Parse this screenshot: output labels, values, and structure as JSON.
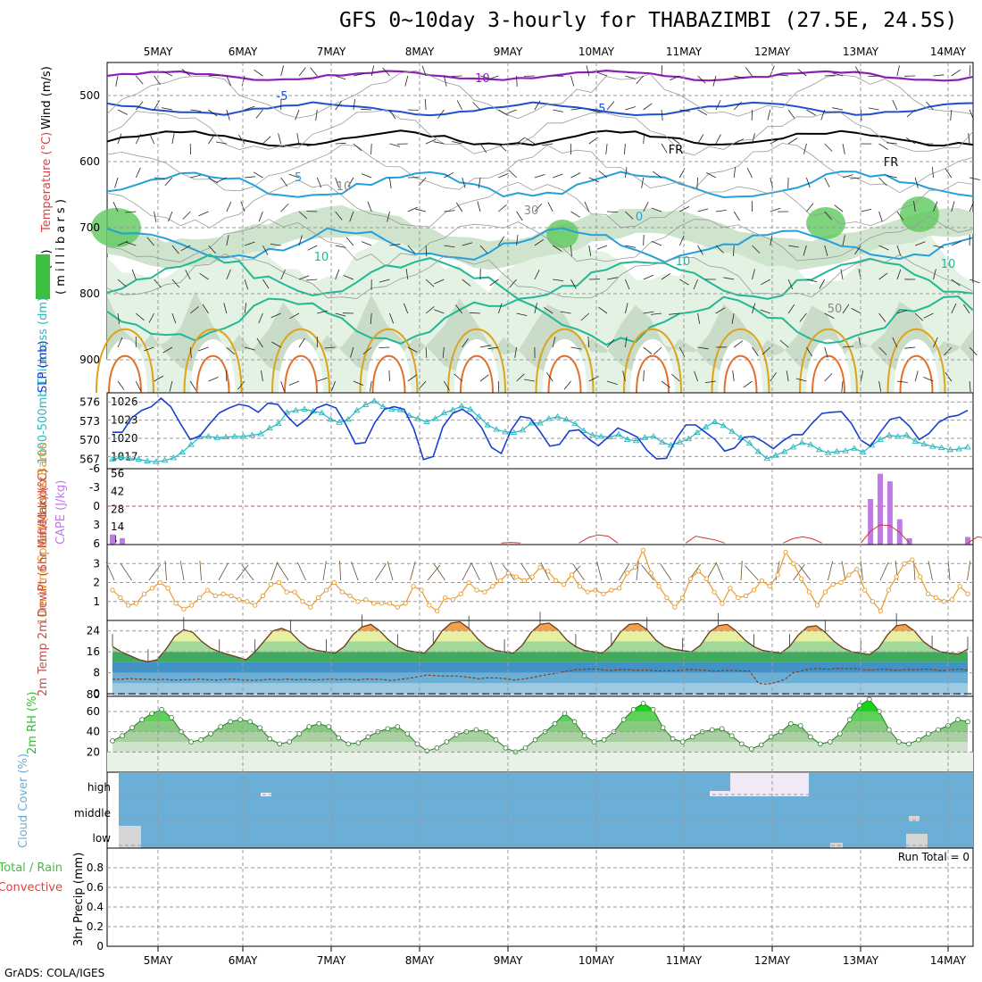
{
  "title": "GFS 0~10day 3-hourly for THABAZIMBI (27.5E, 24.5S)",
  "footer": "GrADS: COLA/IGES",
  "date_labels": [
    "5MAY",
    "6MAY",
    "7MAY",
    "8MAY",
    "9MAY",
    "10MAY",
    "11MAY",
    "12MAY",
    "13MAY",
    "14MAY"
  ],
  "colors": {
    "purple": "#8c1fb5",
    "blue": "#1f4fcf",
    "cyan": "#23a0dc",
    "teal": "#22b896",
    "orange": "#e0a21c",
    "slp": "#1a3fd0",
    "thick": "#2ab8c0",
    "wind10": "#e89a2a",
    "rh2m": "#2fbf2f",
    "cloud": "#6baed6"
  },
  "chart_data": [
    {
      "type": "heatmap",
      "panel": "upper-air cross-section",
      "ylabel_parts": [
        "RH (%)",
        "Temperature (°C)",
        "Wind (m/s)"
      ],
      "ylabel_right": "( m i l l i b a r s )",
      "ylim": [
        950,
        450
      ],
      "yticks": [
        500,
        600,
        700,
        800,
        900
      ],
      "isotherm_labels": [
        "-10",
        "-5",
        "-5",
        "FR",
        "FR",
        "5",
        "0",
        "10",
        "10",
        "10",
        "50",
        "30",
        "10"
      ],
      "rh_levels": [
        30,
        50,
        70,
        90
      ]
    },
    {
      "type": "line",
      "panel": "SLP and thickness",
      "ylabel_left": "1000-500mb Thickness (dm)",
      "ylabel_right": "SLP (mb)",
      "left_ticks": [
        567,
        570,
        573,
        576
      ],
      "right_ticks": [
        1017,
        1020,
        1023,
        1026
      ],
      "series": [
        {
          "name": "SLP (mb)",
          "values": [
            1021.0,
            1021.0,
            1023.4,
            1024.6,
            1025.2,
            1026.6,
            1025.2,
            1022.4,
            1019.8,
            1020.4,
            1022.4,
            1024.2,
            1025.0,
            1025.6,
            1025.3,
            1024.3,
            1025.8,
            1025.6,
            1023.6,
            1022.0,
            1023.2,
            1025.0,
            1025.6,
            1025.0,
            1022.3,
            1019.1,
            1019.3,
            1022.6,
            1024.8,
            1025.2,
            1024.8,
            1021.6,
            1016.5,
            1017.0,
            1021.9,
            1024.1,
            1024.8,
            1023.7,
            1021.7,
            1018.5,
            1017.5,
            1021.3,
            1023.6,
            1023.3,
            1021.1,
            1018.7,
            1019.0,
            1021.2,
            1021.4,
            1019.9,
            1018.8,
            1020.2,
            1021.7,
            1021.0,
            1020.2,
            1018.0,
            1016.6,
            1016.7,
            1019.9,
            1022.2,
            1022.2,
            1021.0,
            1019.8,
            1017.9,
            1018.4,
            1020.2,
            1020.3,
            1019.4,
            1018.3,
            1019.6,
            1020.6,
            1020.6,
            1022.5,
            1024.1,
            1024.3,
            1024.4,
            1022.5,
            1019.7,
            1018.7,
            1021.0,
            1023.1,
            1023.5,
            1022.0,
            1019.8,
            1020.8,
            1022.6,
            1023.5,
            1023.8,
            1024.6
          ]
        },
        {
          "name": "1000-500mb Thickness (dm)",
          "values": [
            567.0,
            567.3,
            567.1,
            567.0,
            566.7,
            566.6,
            566.8,
            567.2,
            568.1,
            569.3,
            570.5,
            570.6,
            570.4,
            570.5,
            570.6,
            570.6,
            570.8,
            571.0,
            571.9,
            572.6,
            574.4,
            574.7,
            574.9,
            574.6,
            574.3,
            573.3,
            572.8,
            573.3,
            574.7,
            575.6,
            576.2,
            575.3,
            574.9,
            574.8,
            573.9,
            573.4,
            572.9,
            573.4,
            574.3,
            574.8,
            575.4,
            574.9,
            573.7,
            572.4,
            571.7,
            571.3,
            571.2,
            571.6,
            572.7,
            572.7,
            573.4,
            573.7,
            573.3,
            572.6,
            571.5,
            570.8,
            570.6,
            570.5,
            570.9,
            570.1,
            569.9,
            570.4,
            570.6,
            569.7,
            569.2,
            569.7,
            570.2,
            571.2,
            572.1,
            572.9,
            572.3,
            571.4,
            570.4,
            569.5,
            568.2,
            567.1,
            567.6,
            568.2,
            568.9,
            569.6,
            569.3,
            568.5,
            568.0,
            568.2,
            568.3,
            568.7,
            568.1,
            569.2,
            570.1,
            570.8,
            570.6,
            570.8,
            569.8,
            569.4,
            569.0,
            568.8,
            568.5,
            568.6,
            568.9
          ]
        }
      ]
    },
    {
      "type": "bar",
      "panel": "CAPE and Lifted Index",
      "ylabel_left": "Lifted Index",
      "ylabel_right": "CAPE (J/kg)",
      "left_ticks": [
        "-6",
        "-3",
        "0",
        "3",
        "6"
      ],
      "right_ticks": [
        "56",
        "42",
        "28",
        "14",
        "4"
      ],
      "series": [
        {
          "name": "CAPE (J/kg)",
          "indices": [
            0,
            1,
            78,
            79,
            80,
            81,
            82,
            88
          ],
          "values": [
            8,
            5,
            36,
            56,
            50,
            20,
            5,
            6
          ]
        },
        {
          "name": "Lifted Index",
          "segments": [
            {
              "start": 40,
              "values": [
                5.9,
                5.8,
                5.9
              ]
            },
            {
              "start": 48,
              "values": [
                5.9,
                5.0,
                4.6,
                4.8,
                5.9
              ]
            },
            {
              "start": 59,
              "values": [
                5.9,
                4.8,
                5.1,
                5.4,
                5.9
              ]
            },
            {
              "start": 69,
              "values": [
                5.9,
                5.2,
                4.9,
                5.2,
                5.9
              ]
            },
            {
              "start": 77,
              "values": [
                5.9,
                4.0,
                3.0,
                3.1,
                4.2,
                5.9
              ]
            },
            {
              "start": 88,
              "values": [
                5.9,
                4.9,
                5.2,
                5.9
              ]
            }
          ]
        }
      ]
    },
    {
      "type": "line",
      "panel": "10m wind",
      "ylabel": "10m Wind Speed (m/s) & Barbs",
      "yticks": [
        1,
        2,
        3
      ],
      "ylim": [
        0,
        4
      ],
      "series": [
        {
          "name": "10m Wind Speed",
          "values": [
            1.6,
            1.2,
            0.8,
            0.9,
            1.4,
            1.7,
            2.0,
            1.7,
            0.9,
            0.6,
            0.8,
            1.2,
            1.6,
            1.3,
            1.4,
            1.3,
            1.1,
            1.0,
            0.8,
            1.3,
            1.9,
            2.0,
            1.5,
            1.5,
            1.0,
            0.7,
            1.2,
            1.6,
            2.0,
            1.5,
            1.3,
            1.0,
            1.1,
            0.9,
            0.9,
            0.9,
            0.7,
            0.9,
            1.8,
            1.6,
            0.8,
            0.5,
            1.2,
            1.1,
            1.4,
            2.0,
            1.6,
            1.5,
            1.8,
            2.1,
            2.5,
            2.3,
            2.1,
            2.3,
            2.8,
            2.6,
            2.1,
            1.9,
            2.4,
            1.8,
            1.5,
            1.6,
            1.4,
            1.6,
            1.7,
            2.5,
            2.8,
            3.7,
            2.5,
            1.8,
            1.2,
            0.7,
            1.2,
            2.2,
            2.6,
            2.2,
            1.5,
            0.9,
            1.7,
            1.2,
            1.3,
            1.6,
            2.1,
            1.8,
            2.4,
            3.6,
            3.0,
            2.2,
            1.5,
            0.8,
            1.5,
            1.9,
            2.0,
            2.4,
            2.7,
            1.6,
            1.0,
            0.5,
            1.6,
            2.3,
            3.0,
            3.2,
            2.3,
            1.4,
            1.2,
            1.0,
            1.1,
            1.8,
            1.4
          ]
        }
      ]
    },
    {
      "type": "area",
      "panel": "2m temperature",
      "ylabel": "2m Temp 2m DewPt (6hr Min/Max) (°C)",
      "yticks": [
        0,
        8,
        16,
        24
      ],
      "ylim": [
        -1,
        28
      ],
      "x_extra_label": "80",
      "series": [
        {
          "name": "2m Temp",
          "values": [
            18.0,
            16.0,
            14.5,
            13.0,
            12.2,
            13.0,
            17.0,
            22.0,
            24.5,
            23.5,
            20.0,
            17.5,
            16.0,
            15.0,
            14.0,
            13.0,
            16.0,
            20.0,
            24.0,
            25.0,
            23.5,
            20.0,
            17.5,
            16.5,
            16.0,
            15.5,
            18.0,
            22.5,
            25.5,
            26.5,
            24.0,
            20.5,
            18.0,
            16.5,
            16.0,
            15.5,
            19.0,
            24.0,
            27.0,
            27.5,
            25.0,
            21.0,
            18.0,
            16.5,
            16.0,
            15.5,
            18.5,
            23.5,
            26.5,
            27.0,
            24.5,
            20.5,
            18.0,
            16.5,
            16.0,
            15.5,
            18.5,
            23.5,
            26.5,
            26.8,
            24.5,
            20.5,
            18.0,
            17.0,
            16.5,
            16.0,
            18.5,
            23.5,
            26.0,
            26.5,
            24.0,
            20.5,
            18.0,
            16.5,
            16.0,
            15.5,
            18.0,
            22.5,
            25.5,
            26.0,
            23.5,
            20.0,
            17.5,
            16.0,
            15.5,
            15.0,
            17.5,
            22.5,
            26.0,
            26.5,
            24.0,
            20.0,
            17.5,
            16.0,
            15.5,
            15.2,
            17.0
          ]
        },
        {
          "name": "2m DewPt",
          "values": [
            5.5,
            5.5,
            5.8,
            5.6,
            5.5,
            5.3,
            5.5,
            5.2,
            5.3,
            5.4,
            5.6,
            5.3,
            5.2,
            5.5,
            5.6,
            5.2,
            5.1,
            5.2,
            5.5,
            5.3,
            5.6,
            5.3,
            5.5,
            5.2,
            5.4,
            5.6,
            5.3,
            5.6,
            5.2,
            5.6,
            5.5,
            5.4,
            5.0,
            5.5,
            5.9,
            6.5,
            7.1,
            6.9,
            6.7,
            6.8,
            6.6,
            6.2,
            5.7,
            6.1,
            6.0,
            5.8,
            5.2,
            5.6,
            6.1,
            6.8,
            7.4,
            7.9,
            8.6,
            9.1,
            9.3,
            9.5,
            9.2,
            8.9,
            9.2,
            9.2,
            8.9,
            9.1,
            8.8,
            8.7,
            8.8,
            8.9,
            9.3,
            9.1,
            8.9,
            8.6,
            8.8,
            8.9,
            8.7,
            8.7,
            4.0,
            3.6,
            4.3,
            5.4,
            8.0,
            8.8,
            9.5,
            9.6,
            9.3,
            9.7,
            9.5,
            9.6,
            9.2,
            9.0,
            9.4,
            9.2,
            8.9,
            9.3,
            9.1,
            9.4,
            9.2,
            8.8,
            9.1,
            9.5,
            9.0
          ]
        }
      ]
    },
    {
      "type": "area",
      "panel": "2m relative humidity",
      "ylabel": "2m RH (%)",
      "yticks": [
        20,
        40,
        60
      ],
      "ylim": [
        0,
        75
      ],
      "series": [
        {
          "name": "2m RH",
          "values": [
            31.0,
            36.0,
            44.0,
            52.0,
            58.0,
            62.0,
            54.0,
            40.0,
            30.0,
            32.0,
            38.0,
            45.0,
            50.0,
            52.0,
            50.0,
            44.0,
            33.0,
            28.0,
            30.0,
            38.0,
            45.0,
            48.0,
            45.0,
            34.0,
            28.0,
            29.0,
            35.0,
            40.0,
            43.0,
            45.0,
            38.0,
            28.0,
            21.0,
            24.0,
            30.0,
            37.0,
            40.0,
            42.0,
            40.0,
            32.0,
            24.0,
            20.0,
            24.0,
            32.0,
            40.0,
            48.0,
            58.0,
            50.0,
            36.0,
            30.0,
            32.0,
            40.0,
            52.0,
            62.0,
            68.0,
            62.0,
            44.0,
            33.0,
            30.0,
            35.0,
            40.0,
            42.0,
            43.0,
            36.0,
            28.0,
            23.0,
            27.0,
            35.0,
            40.0,
            48.0,
            46.0,
            35.0,
            28.0,
            30.0,
            38.0,
            52.0,
            66.0,
            72.0,
            60.0,
            42.0,
            30.0,
            28.0,
            32.0,
            38.0,
            42.0,
            46.0,
            52.0,
            50.0
          ]
        }
      ]
    },
    {
      "type": "heatmap",
      "panel": "cloud cover",
      "ylabel": "Cloud Cover (%)",
      "row_labels": [
        "high",
        "middle",
        "low"
      ]
    },
    {
      "type": "bar",
      "panel": "3hr precipitation",
      "ylabel": "3hr Precip (mm)",
      "legend": [
        "Total / Rain",
        "Convective"
      ],
      "yticks": [
        "0",
        "0.2",
        "0.4",
        "0.6",
        "0.8"
      ],
      "ylim": [
        0,
        1
      ],
      "annotation": "Run Total = 0",
      "values": []
    }
  ]
}
